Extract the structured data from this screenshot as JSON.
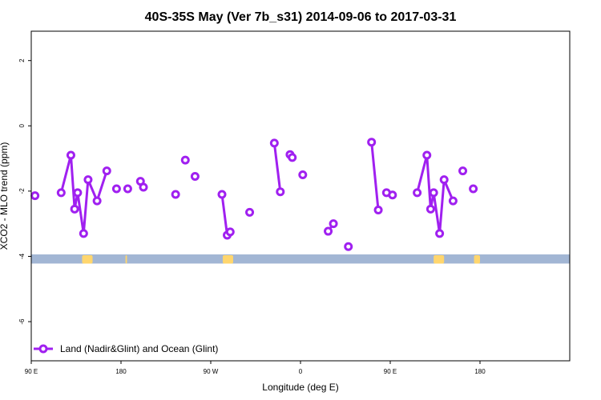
{
  "chart_data": {
    "type": "line",
    "title": "40S-35S May (Ver 7b_s31)   2014-09-06 to 2017-03-31",
    "xlabel": "Longitude (deg E)",
    "ylabel": "XCO2 - MLO trend (ppm)",
    "xlim": [
      -90,
      270
    ],
    "ylim": [
      -7.2,
      2.9
    ],
    "x_ticks": [
      {
        "value": -90,
        "label": "90 E"
      },
      {
        "value": -30,
        "label": "180"
      },
      {
        "value": 30,
        "label": "90 W"
      },
      {
        "value": 90,
        "label": "0"
      },
      {
        "value": 150,
        "label": "90 E"
      },
      {
        "value": 210,
        "label": "180"
      }
    ],
    "y_ticks": [
      {
        "value": 2,
        "label": "2"
      },
      {
        "value": 0,
        "label": "0"
      },
      {
        "value": -2,
        "label": "-2"
      },
      {
        "value": -4,
        "label": "-4"
      },
      {
        "value": -6,
        "label": "-6"
      }
    ],
    "grid": false,
    "legend_position": "bottom-left",
    "series": [
      {
        "name": "Land (Nadir&Glint) and Ocean (Glint)",
        "color": "#a020f0",
        "segments": [
          [
            [
              -87.5,
              -2.14
            ]
          ],
          [
            [
              -70,
              -2.05
            ],
            [
              -63.5,
              -0.9
            ],
            [
              -61,
              -2.55
            ],
            [
              -59,
              -2.05
            ],
            [
              -55,
              -3.3
            ],
            [
              -52,
              -1.65
            ],
            [
              -46,
              -2.3
            ],
            [
              -39.5,
              -1.38
            ]
          ],
          [
            [
              -33,
              -1.93
            ]
          ],
          [
            [
              -25.5,
              -1.93
            ]
          ],
          [
            [
              -17,
              -1.7
            ]
          ],
          [
            [
              -15,
              -1.88
            ]
          ],
          [
            [
              6.5,
              -2.1
            ]
          ],
          [
            [
              13,
              -1.05
            ]
          ],
          [
            [
              19.5,
              -1.55
            ]
          ],
          [
            [
              37.5,
              -2.1
            ],
            [
              41,
              -3.35
            ],
            [
              43,
              -3.25
            ]
          ],
          [
            [
              56,
              -2.65
            ]
          ],
          [
            [
              72.5,
              -0.53
            ],
            [
              76.5,
              -2.02
            ]
          ],
          [
            [
              83,
              -0.88
            ],
            [
              84.5,
              -0.97
            ]
          ],
          [
            [
              91.5,
              -1.5
            ]
          ],
          [
            [
              108.5,
              -3.23
            ],
            [
              112,
              -3.0
            ]
          ],
          [
            [
              122,
              -3.7
            ]
          ],
          [
            [
              137.5,
              -0.5
            ],
            [
              142,
              -2.58
            ]
          ],
          [
            [
              147.5,
              -2.05
            ]
          ],
          [
            [
              151.5,
              -2.12
            ]
          ],
          [
            [
              168,
              -2.05
            ],
            [
              174.5,
              -0.9
            ],
            [
              177,
              -2.55
            ],
            [
              179,
              -2.05
            ],
            [
              183,
              -3.3
            ],
            [
              186,
              -1.65
            ],
            [
              192,
              -2.3
            ]
          ],
          [
            [
              198.5,
              -1.38
            ]
          ],
          [
            [
              205.5,
              -1.93
            ]
          ]
        ]
      }
    ],
    "land_ocean_strip": {
      "ocean_color": "#a2b6d4",
      "land_color": "#ffd66e",
      "y_range": [
        -4.22,
        -3.94
      ],
      "land_spans": [
        [
          -56,
          -49
        ],
        [
          -27,
          -26
        ],
        [
          38,
          45
        ],
        [
          179,
          186
        ],
        [
          206,
          210
        ]
      ]
    }
  }
}
